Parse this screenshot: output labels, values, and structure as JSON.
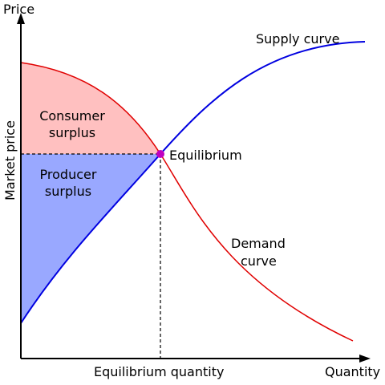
{
  "axes": {
    "y_title": "Price",
    "y_label": "Market price",
    "x_label": "Equilibrium quantity",
    "x_title": "Quantity"
  },
  "curves": {
    "supply": "Supply curve",
    "demand": [
      "Demand",
      "curve"
    ]
  },
  "regions": {
    "consumer_surplus": [
      "Consumer",
      "surplus"
    ],
    "producer_surplus": [
      "Producer",
      "surplus"
    ]
  },
  "equilibrium": "Equilibrium"
}
